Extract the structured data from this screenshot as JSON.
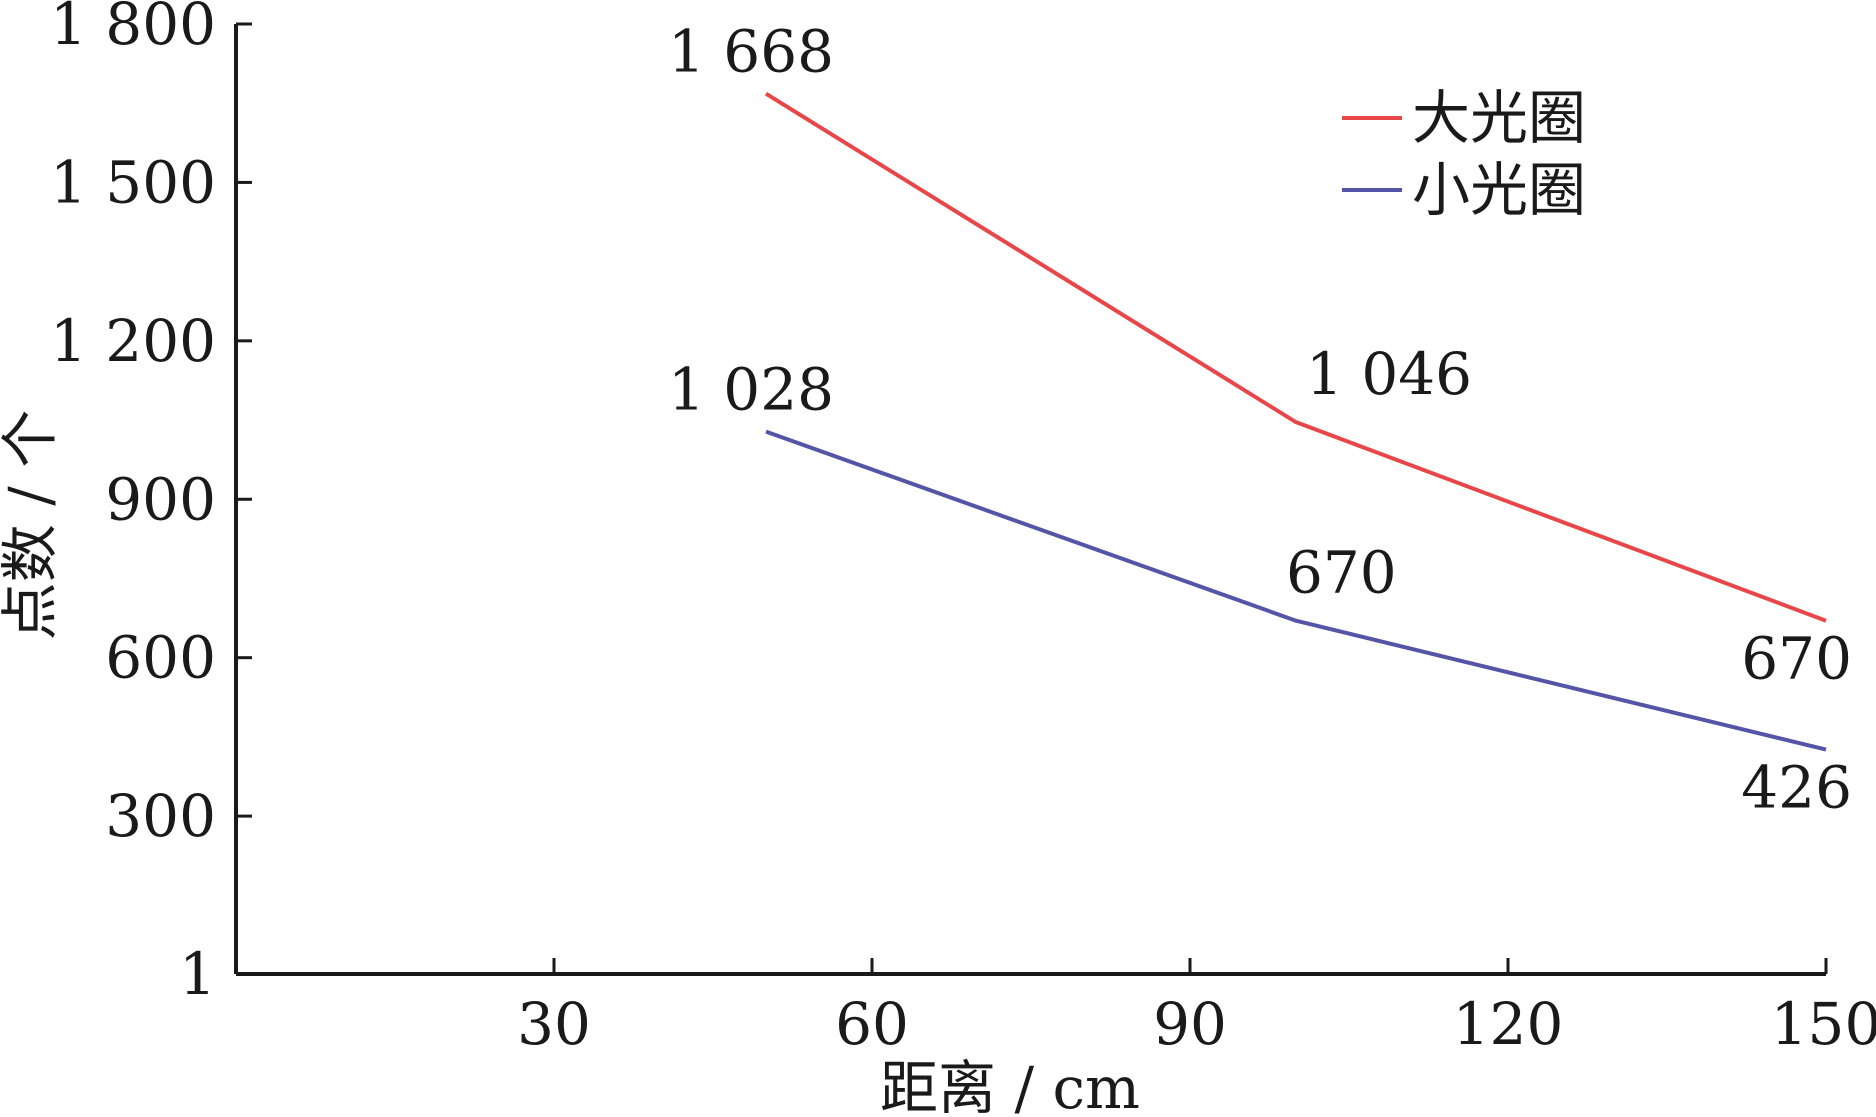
{
  "chart_data": {
    "type": "line",
    "title": "",
    "xlabel": "距离 / cm",
    "ylabel": "点数 / 个",
    "xlim": [
      0,
      150
    ],
    "ylim": [
      1,
      1800
    ],
    "x_ticks": [
      30,
      60,
      90,
      120,
      150
    ],
    "y_ticks": [
      1,
      300,
      600,
      900,
      1200,
      1500,
      1800
    ],
    "x_tick_labels": [
      "30",
      "60",
      "90",
      "120",
      "150"
    ],
    "y_tick_labels": [
      "1",
      "300",
      "600",
      "900",
      "1 200",
      "1 500",
      "1 800"
    ],
    "grid": false,
    "legend_position": "top-right",
    "series": [
      {
        "name": "大光圈",
        "color": "#e8474a",
        "x": [
          50,
          100,
          150
        ],
        "values": [
          1668,
          1046,
          670
        ],
        "data_labels": [
          "1 668",
          "1 046",
          "670"
        ]
      },
      {
        "name": "小光圈",
        "color": "#5555a8",
        "x": [
          50,
          100,
          150
        ],
        "values": [
          1028,
          670,
          426
        ],
        "data_labels": [
          "1 028",
          "670",
          "426"
        ]
      }
    ]
  }
}
